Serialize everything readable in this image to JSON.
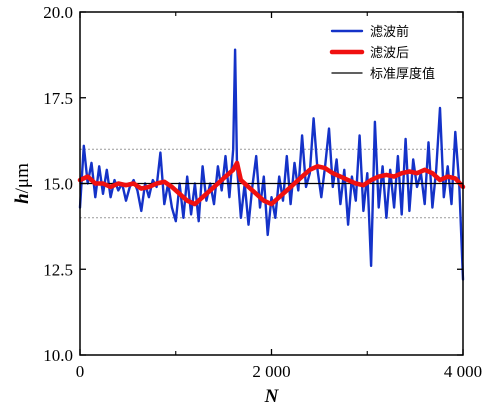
{
  "chart_data": {
    "type": "line",
    "xlabel": "N",
    "ylabel_main": "h",
    "ylabel_unit": "/μm",
    "xlim": [
      0,
      4000
    ],
    "ylim": [
      10.0,
      20.0
    ],
    "xticks": [
      0,
      2000,
      4000
    ],
    "xtick_labels": [
      "0",
      "2 000",
      "4 000"
    ],
    "x_minor_ticks": [
      1000,
      3000
    ],
    "yticks": [
      10.0,
      12.5,
      15.0,
      17.5,
      20.0
    ],
    "ytick_labels": [
      "10.0",
      "12.5",
      "15.0",
      "17.5",
      "20.0"
    ],
    "reference_lines": [
      {
        "name": "upper-tolerance",
        "y": 16.0,
        "style": "dotted",
        "color": "#9a9a9a"
      },
      {
        "name": "lower-tolerance",
        "y": 14.0,
        "style": "dotted",
        "color": "#9a9a9a"
      }
    ],
    "legend_position": "top-right",
    "series": [
      {
        "name": "滤波前",
        "color": "#1432c8",
        "x": [
          0,
          40,
          80,
          120,
          160,
          200,
          240,
          280,
          320,
          360,
          400,
          440,
          480,
          520,
          560,
          600,
          640,
          680,
          720,
          760,
          800,
          840,
          880,
          920,
          960,
          1000,
          1040,
          1080,
          1120,
          1160,
          1200,
          1240,
          1280,
          1320,
          1360,
          1400,
          1440,
          1480,
          1520,
          1560,
          1600,
          1620,
          1640,
          1680,
          1720,
          1760,
          1800,
          1840,
          1880,
          1920,
          1960,
          2000,
          2040,
          2080,
          2120,
          2160,
          2200,
          2240,
          2280,
          2320,
          2360,
          2400,
          2440,
          2480,
          2520,
          2560,
          2600,
          2640,
          2680,
          2720,
          2760,
          2800,
          2840,
          2880,
          2920,
          2960,
          3000,
          3040,
          3080,
          3120,
          3160,
          3200,
          3240,
          3280,
          3320,
          3360,
          3400,
          3440,
          3480,
          3520,
          3560,
          3600,
          3640,
          3680,
          3720,
          3760,
          3800,
          3840,
          3880,
          3920,
          3960,
          4000
        ],
        "values": [
          14.3,
          16.1,
          15.0,
          15.6,
          14.6,
          15.5,
          14.7,
          15.4,
          14.6,
          15.1,
          14.8,
          15.0,
          14.5,
          14.9,
          15.1,
          14.8,
          14.2,
          15.0,
          14.6,
          15.1,
          14.9,
          15.9,
          14.4,
          15.0,
          14.3,
          13.9,
          15.0,
          14.0,
          15.2,
          14.1,
          15.0,
          13.9,
          15.5,
          14.5,
          15.0,
          14.4,
          15.5,
          14.8,
          15.8,
          14.6,
          16.0,
          18.9,
          15.5,
          14.0,
          15.0,
          13.8,
          14.9,
          15.8,
          14.3,
          15.2,
          13.5,
          14.6,
          14.0,
          15.2,
          14.5,
          15.8,
          14.4,
          15.6,
          14.8,
          16.4,
          14.9,
          15.3,
          16.9,
          15.4,
          14.6,
          15.5,
          16.6,
          14.9,
          15.7,
          14.4,
          15.4,
          13.8,
          15.2,
          14.5,
          16.4,
          14.2,
          15.3,
          12.6,
          16.8,
          14.3,
          15.5,
          14.0,
          15.4,
          14.3,
          15.8,
          14.1,
          16.3,
          14.2,
          15.7,
          14.9,
          15.3,
          14.4,
          16.2,
          14.3,
          15.4,
          17.2,
          14.6,
          15.5,
          14.4,
          16.5,
          15.0,
          12.2
        ]
      },
      {
        "name": "滤波后",
        "color": "#f01010",
        "x": [
          0,
          80,
          160,
          240,
          320,
          400,
          480,
          560,
          640,
          720,
          800,
          880,
          960,
          1040,
          1120,
          1200,
          1280,
          1360,
          1440,
          1520,
          1600,
          1640,
          1680,
          1760,
          1840,
          1920,
          2000,
          2080,
          2160,
          2240,
          2320,
          2400,
          2480,
          2560,
          2640,
          2720,
          2800,
          2880,
          2960,
          3040,
          3120,
          3200,
          3280,
          3360,
          3440,
          3520,
          3600,
          3680,
          3760,
          3840,
          3920,
          4000
        ],
        "values": [
          15.1,
          15.2,
          15.0,
          15.0,
          14.9,
          15.0,
          14.95,
          15.0,
          14.85,
          14.9,
          15.0,
          15.05,
          14.9,
          14.7,
          14.5,
          14.4,
          14.6,
          14.8,
          15.0,
          15.2,
          15.4,
          15.6,
          15.1,
          14.9,
          14.7,
          14.5,
          14.4,
          14.6,
          14.8,
          15.0,
          15.2,
          15.4,
          15.5,
          15.45,
          15.3,
          15.2,
          15.1,
          15.0,
          14.95,
          15.1,
          15.2,
          15.25,
          15.2,
          15.3,
          15.35,
          15.3,
          15.4,
          15.3,
          15.1,
          15.2,
          15.15,
          14.9
        ]
      },
      {
        "name": "标准厚度值",
        "color": "#000000",
        "x": [
          0,
          4000
        ],
        "values": [
          15.0,
          15.0
        ]
      }
    ]
  }
}
